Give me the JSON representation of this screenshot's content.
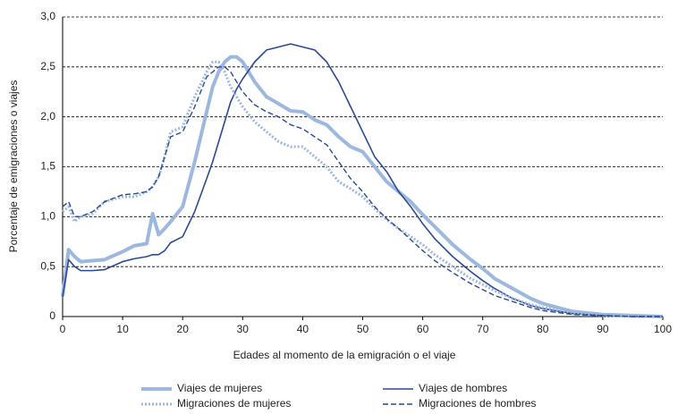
{
  "chart_data": {
    "type": "line",
    "xlabel": "Edades al momento de la emigración o el viaje",
    "ylabel": "Porcentaje de emigraciones o viajes",
    "x": [
      0,
      1,
      2,
      3,
      5,
      7,
      10,
      12,
      14,
      15,
      16,
      17,
      18,
      20,
      22,
      24,
      25,
      26,
      27,
      28,
      29,
      30,
      32,
      34,
      36,
      38,
      40,
      42,
      44,
      46,
      48,
      50,
      52,
      54,
      56,
      58,
      60,
      62,
      65,
      68,
      70,
      72,
      75,
      78,
      80,
      85,
      90,
      95,
      100
    ],
    "series": [
      {
        "name": "Viajes de mujeres",
        "color": "#9db8de",
        "style": "solid",
        "width": 4,
        "values": [
          0.2,
          0.67,
          0.6,
          0.55,
          0.56,
          0.57,
          0.65,
          0.71,
          0.73,
          1.03,
          0.82,
          0.88,
          0.95,
          1.1,
          1.55,
          2.05,
          2.3,
          2.45,
          2.55,
          2.6,
          2.6,
          2.55,
          2.35,
          2.2,
          2.13,
          2.06,
          2.05,
          1.97,
          1.92,
          1.8,
          1.7,
          1.65,
          1.5,
          1.35,
          1.25,
          1.15,
          1.02,
          0.9,
          0.72,
          0.57,
          0.48,
          0.38,
          0.28,
          0.18,
          0.13,
          0.05,
          0.02,
          0.01,
          0
        ]
      },
      {
        "name": "Viajes de hombres",
        "color": "#2a4a94",
        "style": "solid",
        "width": 1.6,
        "values": [
          0.2,
          0.57,
          0.5,
          0.46,
          0.46,
          0.47,
          0.55,
          0.58,
          0.6,
          0.62,
          0.62,
          0.66,
          0.74,
          0.8,
          1.05,
          1.38,
          1.55,
          1.75,
          1.95,
          2.15,
          2.28,
          2.38,
          2.55,
          2.67,
          2.7,
          2.73,
          2.7,
          2.67,
          2.55,
          2.35,
          2.1,
          1.85,
          1.6,
          1.45,
          1.25,
          1.1,
          0.93,
          0.78,
          0.6,
          0.45,
          0.36,
          0.28,
          0.18,
          0.11,
          0.08,
          0.03,
          0.01,
          0,
          0
        ]
      },
      {
        "name": "Migraciones de mujeres",
        "color": "#9db8de",
        "style": "dotted",
        "width": 3,
        "values": [
          1.05,
          1.1,
          0.95,
          1.0,
          1.03,
          1.15,
          1.2,
          1.2,
          1.25,
          1.3,
          1.4,
          1.6,
          1.85,
          1.9,
          2.2,
          2.45,
          2.55,
          2.55,
          2.45,
          2.3,
          2.2,
          2.1,
          1.95,
          1.85,
          1.75,
          1.7,
          1.7,
          1.6,
          1.5,
          1.35,
          1.28,
          1.2,
          1.08,
          0.97,
          0.88,
          0.8,
          0.72,
          0.62,
          0.5,
          0.38,
          0.32,
          0.26,
          0.18,
          0.12,
          0.09,
          0.04,
          0.01,
          0,
          0
        ]
      },
      {
        "name": "Migraciones de hombres",
        "color": "#2a4a94",
        "style": "dashed",
        "width": 1.4,
        "values": [
          1.1,
          1.15,
          1.0,
          1.0,
          1.05,
          1.15,
          1.22,
          1.23,
          1.25,
          1.3,
          1.4,
          1.6,
          1.8,
          1.85,
          2.1,
          2.4,
          2.45,
          2.5,
          2.5,
          2.45,
          2.35,
          2.25,
          2.12,
          2.05,
          2.0,
          1.92,
          1.88,
          1.8,
          1.72,
          1.55,
          1.38,
          1.25,
          1.1,
          0.98,
          0.88,
          0.77,
          0.66,
          0.56,
          0.44,
          0.33,
          0.27,
          0.21,
          0.15,
          0.09,
          0.06,
          0.02,
          0.01,
          0,
          0
        ]
      }
    ],
    "xlim": [
      0,
      100
    ],
    "xticks": [
      0,
      10,
      20,
      30,
      40,
      50,
      60,
      70,
      80,
      90,
      100
    ],
    "ylim": [
      0,
      3
    ],
    "yticks": [
      0,
      {
        "value": 0.5,
        "label": "0,5"
      },
      {
        "value": 1,
        "label": "1,0"
      },
      {
        "value": 1.5,
        "label": "1,5"
      },
      {
        "value": 2,
        "label": "2,0"
      },
      {
        "value": 2.5,
        "label": "2,5"
      },
      {
        "value": 3,
        "label": "3,0"
      }
    ],
    "grid": true,
    "legend": "bottom"
  }
}
